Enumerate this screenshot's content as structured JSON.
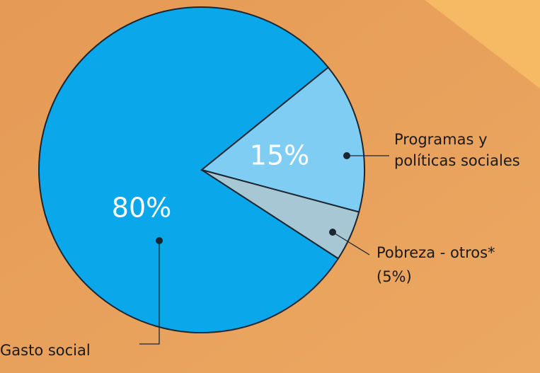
{
  "chart_data": {
    "type": "pie",
    "categories": [
      "Gasto social",
      "Programas y políticas sociales",
      "Pobreza - otros*"
    ],
    "values": [
      80,
      15,
      5
    ],
    "value_labels": [
      "80%",
      "15%",
      "(5%)"
    ],
    "colors": [
      "#0aa8ea",
      "#80cdf3",
      "#a8c7d4"
    ]
  }
}
